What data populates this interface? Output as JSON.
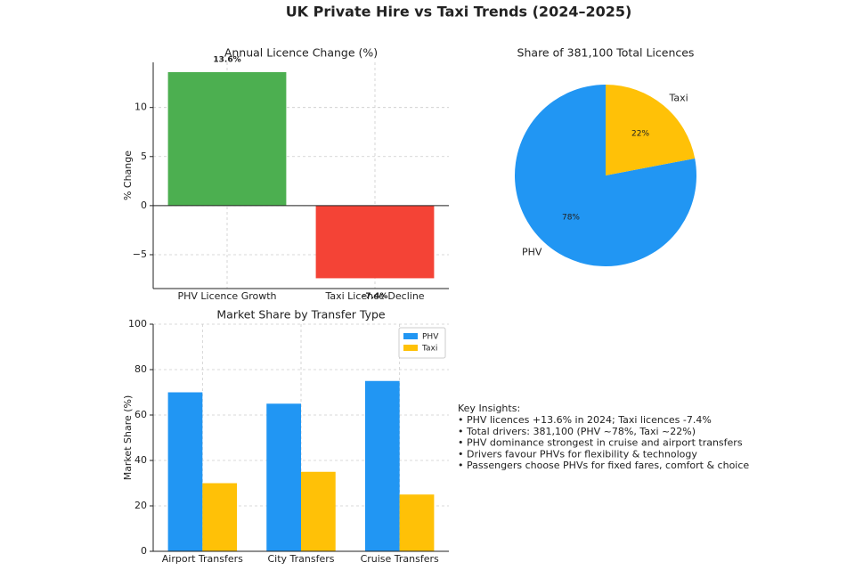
{
  "title": "UK Private Hire vs Taxi Trends (2024–2025)",
  "chart_data": [
    {
      "type": "bar",
      "title": "Annual Licence Change (%)",
      "ylabel": "% Change",
      "categories": [
        "PHV Licence Growth",
        "Taxi Licence Decline"
      ],
      "values": [
        13.6,
        -7.4
      ],
      "value_labels": [
        "13.6%",
        "-7.4%"
      ],
      "colors": [
        "#4caf50",
        "#f44336"
      ],
      "ylim": [
        -8.45,
        14.6
      ],
      "yticks": [
        {
          "value": -5,
          "label": "−5"
        },
        0,
        5,
        10
      ],
      "grid": true,
      "zero_line": true
    },
    {
      "type": "pie",
      "title": "Share of 381,100 Total Licences",
      "categories": [
        "PHV",
        "Taxi"
      ],
      "values": [
        78,
        22
      ],
      "value_labels": [
        "78%",
        "22%"
      ],
      "colors": [
        "#2196f3",
        "#ffc107"
      ]
    },
    {
      "type": "bar",
      "title": "Market Share by Transfer Type",
      "ylabel": "Market Share (%)",
      "categories": [
        "Airport Transfers",
        "City Transfers",
        "Cruise Transfers"
      ],
      "series": [
        {
          "name": "PHV",
          "color": "#2196f3",
          "values": [
            70,
            65,
            75
          ]
        },
        {
          "name": "Taxi",
          "color": "#ffc107",
          "values": [
            30,
            35,
            25
          ]
        }
      ],
      "ylim": [
        0,
        100
      ],
      "yticks": [
        0,
        20,
        40,
        60,
        80,
        100
      ],
      "grid": true,
      "legend": "upper right"
    }
  ],
  "insights": {
    "heading": "Key Insights:",
    "lines": [
      "• PHV licences +13.6% in 2024; Taxi licences -7.4%",
      "• Total drivers: 381,100 (PHV ~78%, Taxi ~22%)",
      "• PHV dominance strongest in cruise and airport transfers",
      "• Drivers favour PHVs for flexibility & technology",
      "• Passengers choose PHVs for fixed fares, comfort & choice"
    ]
  }
}
